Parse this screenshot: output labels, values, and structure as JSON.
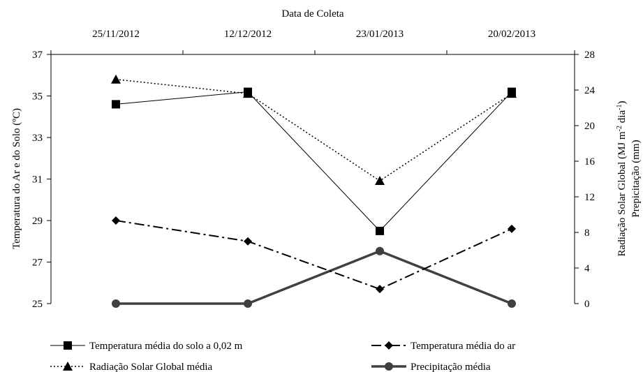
{
  "chart_data": {
    "type": "line",
    "title": "",
    "xlabel": "Data de Coleta",
    "ylabel_left": "Temperatura do Ar e do Solo (ºC)",
    "ylabel_right_1": "Radiação Solar Global (MJ m-2 dia-1)",
    "ylabel_right_2": "Prepicitação (mm)",
    "ylabel_right_parts": {
      "a": "Radiação Solar Global (MJ m",
      "sup1": "-2",
      "b": " dia",
      "sup2": "-1",
      "c": ")"
    },
    "categories": [
      "25/11/2012",
      "12/12/2012",
      "23/01/2013",
      "20/02/2013"
    ],
    "y_left": {
      "min": 25,
      "max": 37,
      "ticks": [
        25,
        27,
        29,
        31,
        33,
        35,
        37
      ]
    },
    "y_right": {
      "min": 0,
      "max": 28,
      "ticks": [
        0,
        4,
        8,
        12,
        16,
        20,
        24,
        28
      ]
    },
    "grid": false,
    "legend_position": "bottom",
    "series": [
      {
        "name": "Temperatura média do solo a 0,02 m",
        "axis": "left",
        "values": [
          34.6,
          35.2,
          28.5,
          35.2
        ],
        "marker": "square",
        "line": "solid-thin",
        "color": "#000000"
      },
      {
        "name": "Temperatura média do ar",
        "axis": "left",
        "values": [
          29.0,
          28.0,
          25.7,
          28.6
        ],
        "marker": "diamond",
        "line": "dash-dot",
        "color": "#000000"
      },
      {
        "name": "Radiação Solar Global média",
        "axis": "right",
        "values": [
          25.2,
          23.6,
          13.8,
          23.6
        ],
        "marker": "triangle",
        "line": "dotted",
        "color": "#000000"
      },
      {
        "name": "Precipitação média",
        "axis": "right",
        "values": [
          0,
          0,
          5.9,
          0
        ],
        "marker": "circle",
        "line": "solid-thick",
        "color": "#404040"
      }
    ]
  }
}
